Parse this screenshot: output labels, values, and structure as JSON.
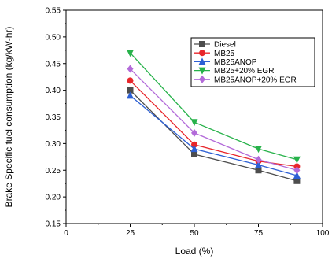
{
  "chart_data": {
    "type": "line",
    "title": "",
    "xlabel": "Load (%)",
    "ylabel": "Brake Specific fuel consumption (kg/kW-hr)",
    "xlim": [
      0,
      100
    ],
    "ylim": [
      0.15,
      0.55
    ],
    "xticks": [
      0,
      25,
      50,
      75,
      100
    ],
    "xtick_labels": [
      "0",
      "25",
      "50",
      "75",
      "100"
    ],
    "yticks": [
      0.15,
      0.2,
      0.25,
      0.3,
      0.35,
      0.4,
      0.45,
      0.5,
      0.55
    ],
    "ytick_labels": [
      "0.15",
      "0.20",
      "0.25",
      "0.30",
      "0.35",
      "0.40",
      "0.45",
      "0.50",
      "0.55"
    ],
    "x": [
      25,
      50,
      75,
      90
    ],
    "grid": false,
    "legend_position": "top-right",
    "series": [
      {
        "name": "Diesel",
        "values": [
          0.4,
          0.28,
          0.25,
          0.23
        ],
        "color": "#4d4d4d",
        "marker": "square"
      },
      {
        "name": "MB25",
        "values": [
          0.418,
          0.298,
          0.267,
          0.257
        ],
        "color": "#e8262b",
        "marker": "circle"
      },
      {
        "name": "MB25ANOP",
        "values": [
          0.39,
          0.29,
          0.26,
          0.24
        ],
        "color": "#2c5fd4",
        "marker": "triangle-up"
      },
      {
        "name": "MB25+20% EGR",
        "values": [
          0.47,
          0.34,
          0.29,
          0.27
        ],
        "color": "#27b24a",
        "marker": "triangle-down"
      },
      {
        "name": "MB25ANOP+20% EGR",
        "values": [
          0.44,
          0.32,
          0.27,
          0.25
        ],
        "color": "#b36bd9",
        "marker": "diamond"
      }
    ]
  }
}
